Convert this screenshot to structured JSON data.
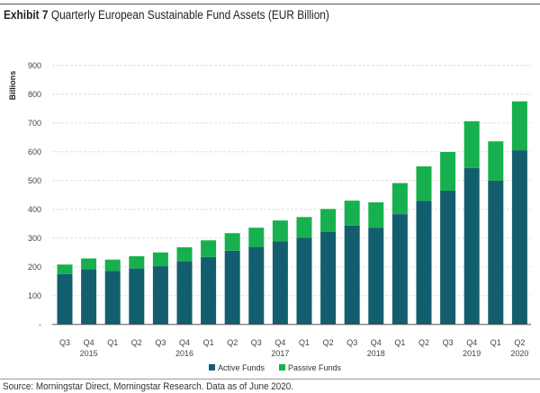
{
  "title_prefix": "Exhibit 7",
  "title": "Quarterly European Sustainable Fund Assets (EUR Billion)",
  "source": "Source: Morningstar Direct, Morningstar Research. Data as of June 2020.",
  "colors": {
    "active": "#135e6e",
    "passive": "#17b04e"
  },
  "chart_data": {
    "type": "bar",
    "stacked": true,
    "title": "Quarterly European Sustainable Fund Assets (EUR Billion)",
    "ylabel": "Billions",
    "xlabel": "",
    "ylim": [
      0,
      900
    ],
    "yticks": [
      "-",
      "100",
      "200",
      "300",
      "400",
      "500",
      "600",
      "700",
      "800",
      "900"
    ],
    "categories": [
      "Q3",
      "Q4",
      "Q1",
      "Q2",
      "Q3",
      "Q4",
      "Q1",
      "Q2",
      "Q3",
      "Q4",
      "Q1",
      "Q2",
      "Q3",
      "Q4",
      "Q1",
      "Q2",
      "Q3",
      "Q4",
      "Q1",
      "Q2"
    ],
    "year_labels": {
      "1": "2015",
      "5": "2016",
      "9": "2017",
      "13": "2018",
      "17": "2019",
      "19": "2020"
    },
    "series": [
      {
        "name": "Active Funds",
        "values": [
          175,
          191,
          186,
          194,
          202,
          219,
          234,
          256,
          269,
          288,
          301,
          322,
          343,
          336,
          383,
          429,
          465,
          543,
          500,
          605
        ]
      },
      {
        "name": "Passive Funds",
        "values": [
          33,
          38,
          39,
          43,
          48,
          49,
          58,
          61,
          67,
          73,
          72,
          79,
          87,
          88,
          108,
          120,
          134,
          163,
          136,
          170
        ]
      }
    ],
    "grid": true,
    "legend": "bottom"
  }
}
